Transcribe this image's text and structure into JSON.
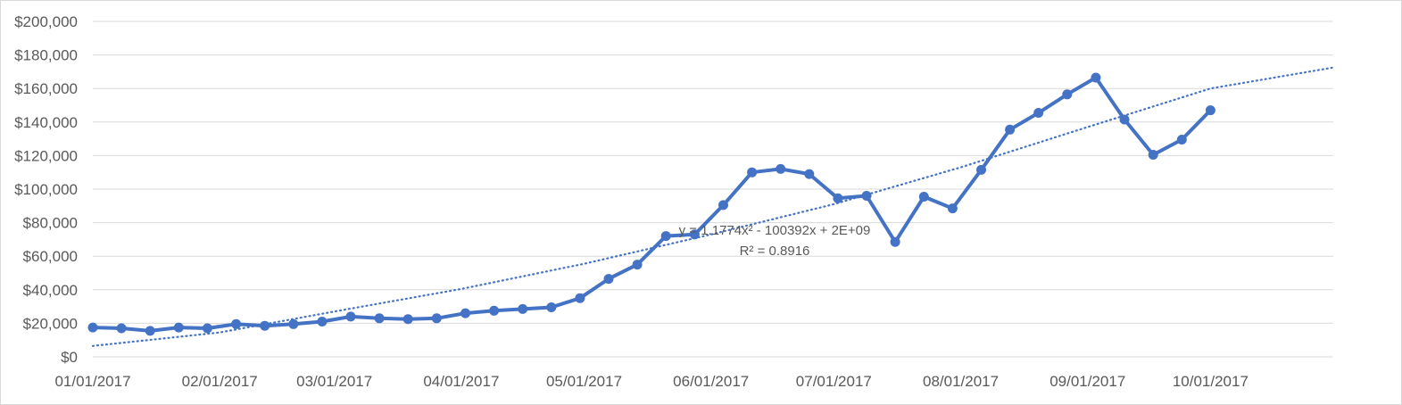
{
  "chart_data": {
    "type": "line",
    "title": "",
    "xlabel": "",
    "ylabel": "",
    "ylim": [
      0,
      200000
    ],
    "y_ticks": [
      "$0",
      "$20,000",
      "$40,000",
      "$60,000",
      "$80,000",
      "$100,000",
      "$120,000",
      "$140,000",
      "$160,000",
      "$180,000",
      "$200,000"
    ],
    "x_ticks": [
      {
        "label": "01/01/2017",
        "date": "2017-01-01"
      },
      {
        "label": "02/01/2017",
        "date": "2017-02-01"
      },
      {
        "label": "03/01/2017",
        "date": "2017-03-01"
      },
      {
        "label": "04/01/2017",
        "date": "2017-04-01"
      },
      {
        "label": "05/01/2017",
        "date": "2017-05-01"
      },
      {
        "label": "06/01/2017",
        "date": "2017-06-01"
      },
      {
        "label": "07/01/2017",
        "date": "2017-07-01"
      },
      {
        "label": "08/01/2017",
        "date": "2017-08-01"
      },
      {
        "label": "09/01/2017",
        "date": "2017-09-01"
      },
      {
        "label": "10/01/2017",
        "date": "2017-10-01"
      }
    ],
    "xlim": [
      "2017-01-01",
      "2017-10-31"
    ],
    "grid": true,
    "legend": "none",
    "series": [
      {
        "color": "#4472c4",
        "points": [
          {
            "x": "2017-01-01",
            "y": 17500
          },
          {
            "x": "2017-01-08",
            "y": 17000
          },
          {
            "x": "2017-01-15",
            "y": 15500
          },
          {
            "x": "2017-01-22",
            "y": 17500
          },
          {
            "x": "2017-01-29",
            "y": 17000
          },
          {
            "x": "2017-02-05",
            "y": 19500
          },
          {
            "x": "2017-02-12",
            "y": 18500
          },
          {
            "x": "2017-02-19",
            "y": 19500
          },
          {
            "x": "2017-02-26",
            "y": 21000
          },
          {
            "x": "2017-03-05",
            "y": 24000
          },
          {
            "x": "2017-03-12",
            "y": 23000
          },
          {
            "x": "2017-03-19",
            "y": 22500
          },
          {
            "x": "2017-03-26",
            "y": 23000
          },
          {
            "x": "2017-04-02",
            "y": 26000
          },
          {
            "x": "2017-04-09",
            "y": 27500
          },
          {
            "x": "2017-04-16",
            "y": 28500
          },
          {
            "x": "2017-04-23",
            "y": 29500
          },
          {
            "x": "2017-04-30",
            "y": 35000
          },
          {
            "x": "2017-05-07",
            "y": 46500
          },
          {
            "x": "2017-05-14",
            "y": 55000
          },
          {
            "x": "2017-05-21",
            "y": 72000
          },
          {
            "x": "2017-05-28",
            "y": 73000
          },
          {
            "x": "2017-06-04",
            "y": 90500
          },
          {
            "x": "2017-06-11",
            "y": 110000
          },
          {
            "x": "2017-06-18",
            "y": 112000
          },
          {
            "x": "2017-06-25",
            "y": 109000
          },
          {
            "x": "2017-07-02",
            "y": 94500
          },
          {
            "x": "2017-07-09",
            "y": 96000
          },
          {
            "x": "2017-07-16",
            "y": 68500
          },
          {
            "x": "2017-07-23",
            "y": 95500
          },
          {
            "x": "2017-07-30",
            "y": 88500
          },
          {
            "x": "2017-08-06",
            "y": 111500
          },
          {
            "x": "2017-08-13",
            "y": 135500
          },
          {
            "x": "2017-08-20",
            "y": 145500
          },
          {
            "x": "2017-08-27",
            "y": 156500
          },
          {
            "x": "2017-09-03",
            "y": 166500
          },
          {
            "x": "2017-09-10",
            "y": 141500
          },
          {
            "x": "2017-09-17",
            "y": 120500
          },
          {
            "x": "2017-09-24",
            "y": 129500
          },
          {
            "x": "2017-10-01",
            "y": 147000
          }
        ]
      }
    ],
    "trendline": {
      "type": "polynomial",
      "order": 2,
      "style": "dotted",
      "color": "#4472c4",
      "points": [
        {
          "x": "2017-01-01",
          "y": 6500
        },
        {
          "x": "2017-02-01",
          "y": 14500
        },
        {
          "x": "2017-03-01",
          "y": 27000
        },
        {
          "x": "2017-04-01",
          "y": 40500
        },
        {
          "x": "2017-05-01",
          "y": 55500
        },
        {
          "x": "2017-06-01",
          "y": 73000
        },
        {
          "x": "2017-07-01",
          "y": 91000
        },
        {
          "x": "2017-08-01",
          "y": 113000
        },
        {
          "x": "2017-09-01",
          "y": 137000
        },
        {
          "x": "2017-10-01",
          "y": 160000
        },
        {
          "x": "2017-10-31",
          "y": 172500
        }
      ],
      "equation": "y = 1.1774x² - 100392x + 2E+09",
      "r_squared": "R² = 0.8916"
    }
  }
}
